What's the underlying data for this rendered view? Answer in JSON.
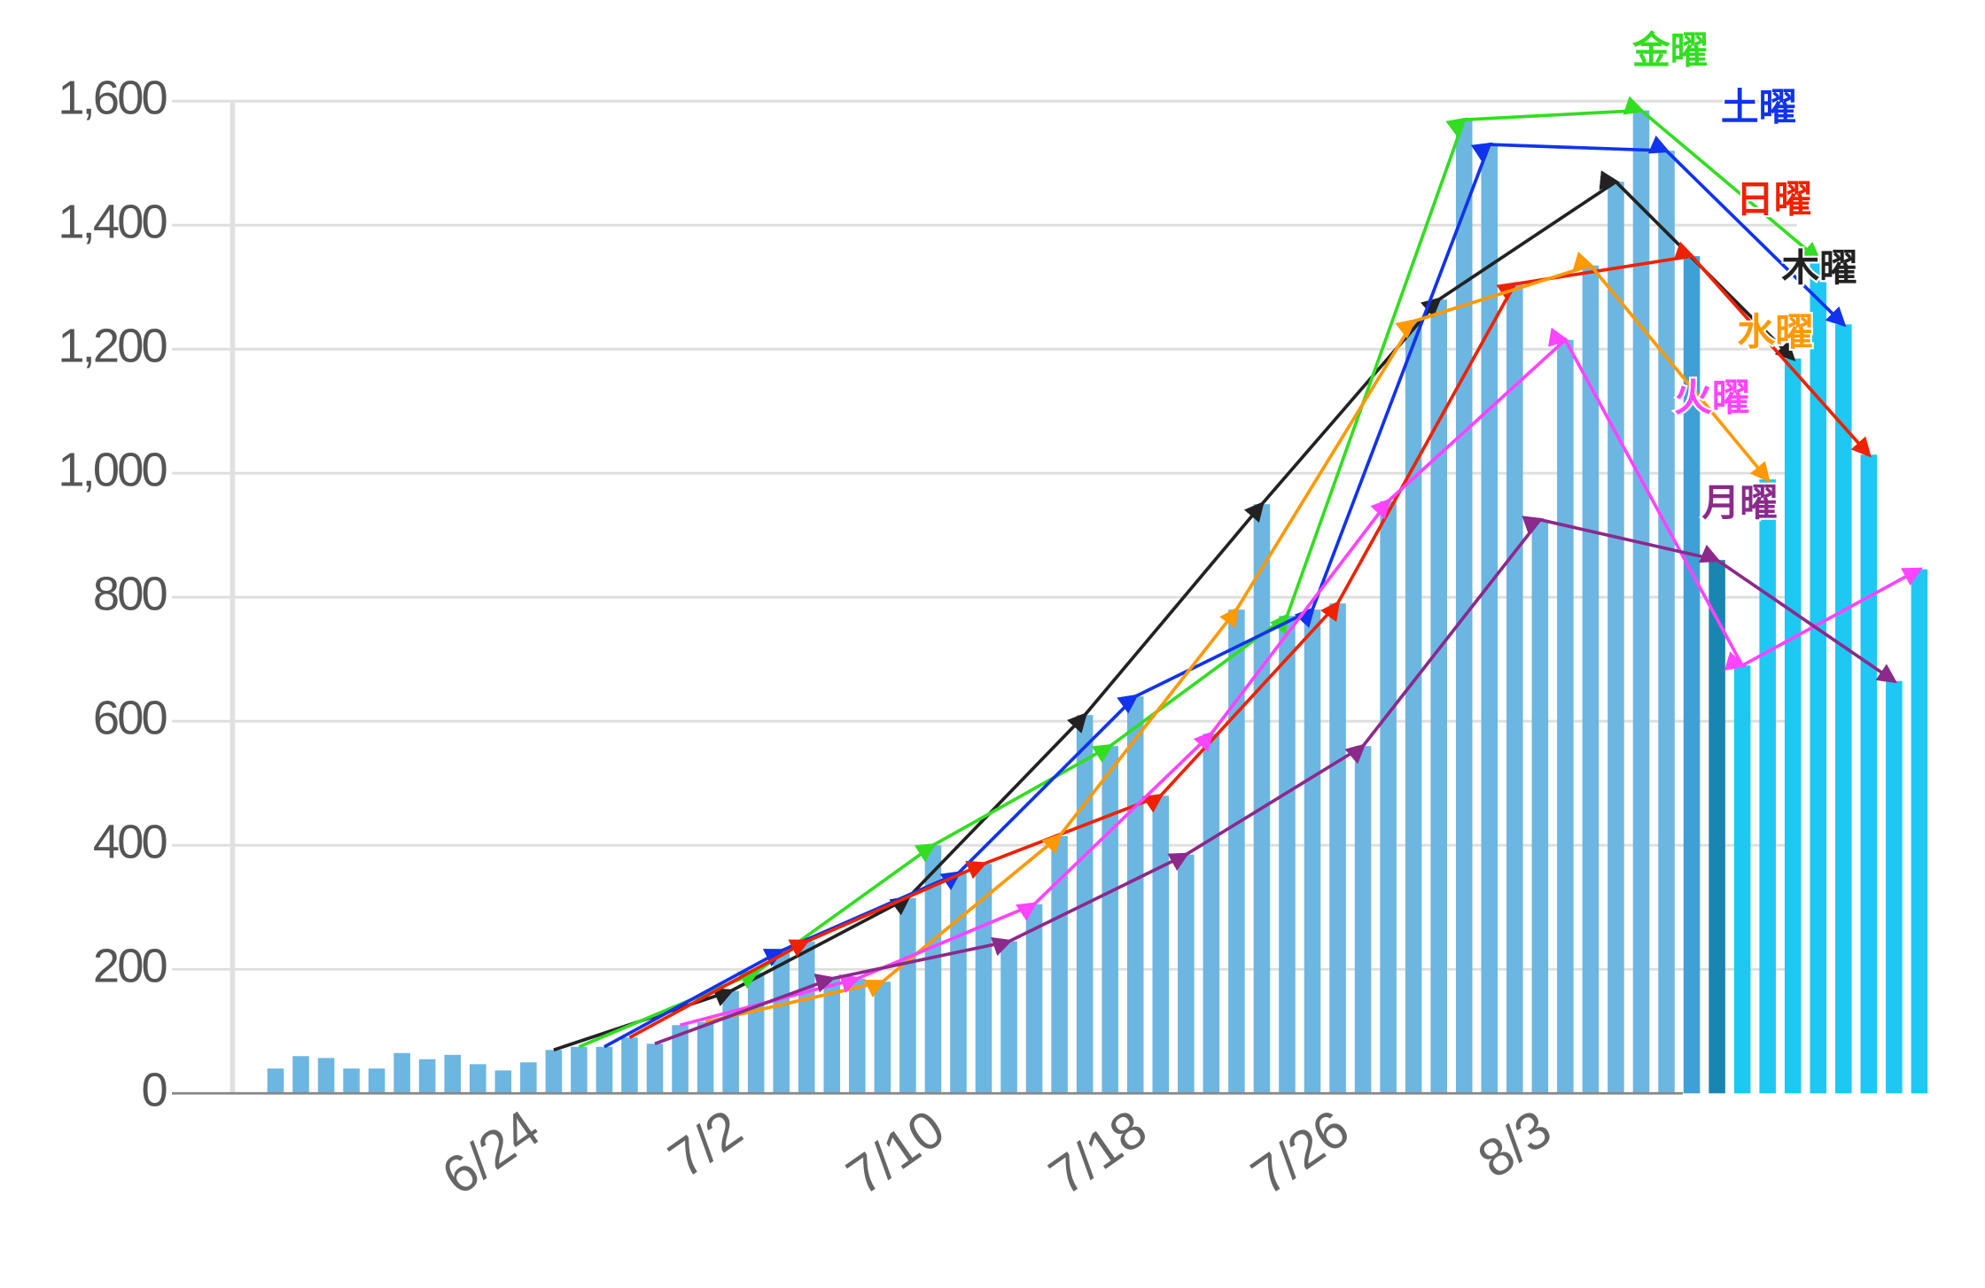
{
  "chart_data": {
    "type": "bar",
    "categories": [
      "6/14",
      "6/15",
      "6/16",
      "6/17",
      "6/18",
      "6/19",
      "6/20",
      "6/21",
      "6/22",
      "6/23",
      "6/24",
      "6/25",
      "6/26",
      "6/27",
      "6/28",
      "6/29",
      "6/30",
      "7/1",
      "7/2",
      "7/3",
      "7/4",
      "7/5",
      "7/6",
      "7/7",
      "7/8",
      "7/9",
      "7/10",
      "7/11",
      "7/12",
      "7/13",
      "7/14",
      "7/15",
      "7/16",
      "7/17",
      "7/18",
      "7/19",
      "7/20",
      "7/21",
      "7/22",
      "7/23",
      "7/24",
      "7/25",
      "7/26",
      "7/27",
      "7/28",
      "7/29",
      "7/30",
      "7/31",
      "8/1",
      "8/2",
      "8/3",
      "8/4",
      "8/5",
      "8/6",
      "8/7",
      "8/8",
      "8/9",
      "8/10",
      "8/11",
      "8/12",
      "8/13",
      "8/14",
      "8/15",
      "8/16",
      "8/17",
      "8/18"
    ],
    "values": [
      40,
      60,
      57,
      40,
      40,
      65,
      55,
      62,
      47,
      37,
      50,
      70,
      75,
      75,
      90,
      80,
      110,
      115,
      165,
      195,
      230,
      245,
      185,
      185,
      180,
      315,
      400,
      355,
      370,
      245,
      305,
      415,
      610,
      560,
      640,
      480,
      385,
      580,
      780,
      950,
      770,
      780,
      790,
      560,
      955,
      1245,
      1280,
      1570,
      1530,
      1305,
      925,
      1215,
      1335,
      1470,
      1585,
      1520,
      1350,
      860,
      690,
      990,
      1185,
      1345,
      1240,
      1030,
      665,
      845
    ],
    "colors": [
      "#6cb6e2",
      "#6cb6e2",
      "#6cb6e2",
      "#6cb6e2",
      "#6cb6e2",
      "#6cb6e2",
      "#6cb6e2",
      "#6cb6e2",
      "#6cb6e2",
      "#6cb6e2",
      "#6cb6e2",
      "#6cb6e2",
      "#6cb6e2",
      "#6cb6e2",
      "#6cb6e2",
      "#6cb6e2",
      "#6cb6e2",
      "#6cb6e2",
      "#6cb6e2",
      "#6cb6e2",
      "#6cb6e2",
      "#6cb6e2",
      "#6cb6e2",
      "#6cb6e2",
      "#6cb6e2",
      "#6cb6e2",
      "#6cb6e2",
      "#6cb6e2",
      "#6cb6e2",
      "#6cb6e2",
      "#6cb6e2",
      "#6cb6e2",
      "#6cb6e2",
      "#6cb6e2",
      "#6cb6e2",
      "#6cb6e2",
      "#6cb6e2",
      "#6cb6e2",
      "#6cb6e2",
      "#6cb6e2",
      "#6cb6e2",
      "#6cb6e2",
      "#6cb6e2",
      "#6cb6e2",
      "#6cb6e2",
      "#6cb6e2",
      "#6cb6e2",
      "#6cb6e2",
      "#6cb6e2",
      "#6cb6e2",
      "#6cb6e2",
      "#6cb6e2",
      "#6cb6e2",
      "#6cb6e2",
      "#6cb6e2",
      "#6cb6e2",
      "#3fa0d8",
      "#1a86b0",
      "#1ec8f2",
      "#1ec8f2",
      "#1ec8f2",
      "#1ec8f2",
      "#1ec8f2",
      "#1ec8f2",
      "#1ec8f2",
      "#1ec8f2"
    ],
    "xticks": [
      "6/24",
      "7/2",
      "7/10",
      "7/18",
      "7/26",
      "8/3"
    ],
    "ylim": [
      0,
      1600
    ],
    "yticks": [
      0,
      200,
      400,
      600,
      800,
      {
        "value": 1000,
        "label": "1,000"
      },
      {
        "value": 1200,
        "label": "1,200"
      },
      {
        "value": 1400,
        "label": "1,400"
      },
      {
        "value": 1600,
        "label": "1,600"
      }
    ],
    "grid": true,
    "series": [
      {
        "type": "line",
        "name": "木曜",
        "color": "#222222",
        "x": [
          "6/25",
          "7/2",
          "7/9",
          "7/16",
          "7/23",
          "7/30",
          "8/6",
          "8/13"
        ],
        "values": [
          70,
          165,
          315,
          610,
          950,
          1280,
          1470,
          1185
        ]
      },
      {
        "type": "line",
        "name": "金曜",
        "color": "#33dd22",
        "x": [
          "6/26",
          "7/3",
          "7/10",
          "7/17",
          "7/24",
          "7/31",
          "8/7",
          "8/14"
        ],
        "values": [
          75,
          195,
          400,
          560,
          770,
          1570,
          1585,
          1345
        ]
      },
      {
        "type": "line",
        "name": "土曜",
        "color": "#1133ee",
        "x": [
          "6/27",
          "7/4",
          "7/11",
          "7/18",
          "7/25",
          "8/1",
          "8/8",
          "8/15"
        ],
        "values": [
          75,
          230,
          355,
          640,
          780,
          1530,
          1520,
          1240
        ]
      },
      {
        "type": "line",
        "name": "日曜",
        "color": "#ee2200",
        "x": [
          "6/28",
          "7/5",
          "7/12",
          "7/19",
          "7/26",
          "8/2",
          "8/9",
          "8/16"
        ],
        "values": [
          90,
          245,
          370,
          480,
          790,
          1305,
          1350,
          1030
        ]
      },
      {
        "type": "line",
        "name": "水曜",
        "color": "#ff9900",
        "x": [
          "7/1",
          "7/8",
          "7/15",
          "7/22",
          "7/29",
          "8/5",
          "8/12"
        ],
        "values": [
          115,
          180,
          415,
          780,
          1245,
          1335,
          990
        ]
      },
      {
        "type": "line",
        "name": "火曜",
        "color": "#ff44ff",
        "x": [
          "6/30",
          "7/7",
          "7/14",
          "7/21",
          "7/28",
          "8/4",
          "8/11",
          "8/18"
        ],
        "values": [
          110,
          185,
          305,
          580,
          955,
          1215,
          690,
          845
        ]
      },
      {
        "type": "line",
        "name": "月曜",
        "color": "#8b2a8b",
        "x": [
          "6/29",
          "7/6",
          "7/13",
          "7/20",
          "7/27",
          "8/3",
          "8/10",
          "8/17"
        ],
        "values": [
          80,
          185,
          245,
          385,
          560,
          925,
          860,
          665
        ]
      }
    ]
  }
}
